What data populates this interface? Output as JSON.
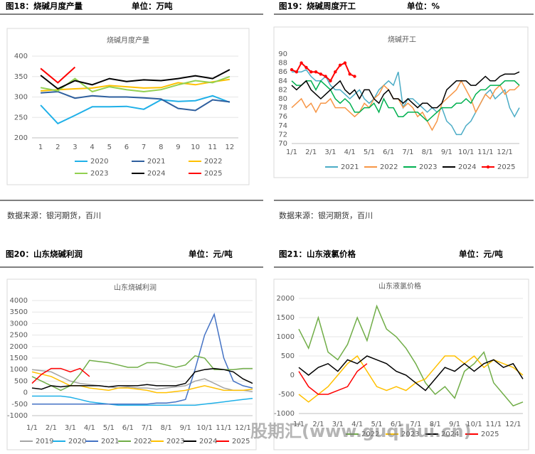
{
  "panels": [
    {
      "heading": "图18：烧碱月度产量",
      "unit": "单位：万吨",
      "source": "数据来源：银河期货，百川"
    },
    {
      "heading": "图19：烧碱周度开工",
      "unit": "单位：%",
      "source": "数据来源：银河期货，百川"
    },
    {
      "heading": "图20：山东烧碱利润",
      "unit": "单位：元/吨"
    },
    {
      "heading": "图21：山东液氯价格",
      "unit": "单位：元/吨"
    }
  ],
  "watermark": "股期汇(www.guqihui.cn)",
  "chart_data": [
    {
      "type": "line",
      "title": "烧碱月度产量",
      "categories": [
        "1",
        "2",
        "3",
        "4",
        "5",
        "6",
        "7",
        "8",
        "9",
        "10",
        "11",
        "12"
      ],
      "ylim": [
        200,
        400
      ],
      "yticks": [
        200,
        250,
        300,
        350,
        400
      ],
      "grid": true,
      "series": [
        {
          "name": "2020",
          "color": "#1fb0e8",
          "values": [
            280,
            235,
            255,
            276,
            276,
            277,
            270,
            293,
            289,
            291,
            303,
            287
          ]
        },
        {
          "name": "2021",
          "color": "#2e5f9e",
          "values": [
            310,
            313,
            297,
            303,
            300,
            300,
            298,
            295,
            272,
            267,
            293,
            288
          ]
        },
        {
          "name": "2022",
          "color": "#ffc000",
          "values": [
            315,
            318,
            320,
            322,
            328,
            325,
            322,
            323,
            335,
            330,
            337,
            343
          ]
        },
        {
          "name": "2023",
          "color": "#92d050",
          "values": [
            323,
            315,
            345,
            313,
            325,
            318,
            313,
            318,
            330,
            340,
            335,
            350
          ]
        },
        {
          "name": "2024",
          "color": "#000000",
          "values": [
            353,
            320,
            340,
            330,
            345,
            338,
            342,
            340,
            345,
            352,
            345,
            367
          ]
        },
        {
          "name": "2025",
          "color": "#ff0000",
          "values": [
            370,
            335,
            373,
            null,
            null,
            null,
            null,
            null,
            null,
            null,
            null,
            null
          ]
        }
      ]
    },
    {
      "type": "line",
      "title": "烧碱开工",
      "categories": [
        "1/1",
        null,
        null,
        null,
        "2/1",
        null,
        null,
        null,
        "3/1",
        null,
        null,
        null,
        "4/1",
        null,
        null,
        null,
        "5/1",
        null,
        null,
        null,
        "6/1",
        null,
        null,
        null,
        "7/1",
        null,
        null,
        null,
        "8/1",
        null,
        null,
        null,
        "9/1",
        null,
        null,
        null,
        "10/1",
        null,
        null,
        null,
        "11/1",
        null,
        null,
        null,
        "12/1",
        null,
        null,
        null
      ],
      "ylim": [
        70,
        90
      ],
      "yticks": [
        70,
        72,
        74,
        76,
        78,
        80,
        82,
        84,
        86,
        88,
        90
      ],
      "grid": false,
      "series": [
        {
          "name": "2021",
          "color": "#4bacc6",
          "values": [
            86,
            86,
            86,
            86.5,
            85,
            84,
            84,
            85,
            83,
            82,
            82,
            81,
            80,
            81,
            82,
            80,
            79,
            80,
            82,
            83,
            84,
            83,
            86,
            78,
            80,
            80,
            79,
            78,
            77,
            78,
            77,
            78,
            75,
            74,
            72,
            72,
            74,
            75,
            77,
            79,
            81,
            82,
            80,
            81,
            82,
            78,
            76,
            78
          ]
        },
        {
          "name": "2022",
          "color": "#f79646",
          "values": [
            78,
            79,
            80,
            78,
            79,
            77,
            79,
            79,
            80,
            78,
            78,
            78,
            77,
            76,
            77,
            79,
            78,
            80,
            81,
            83,
            82,
            80,
            80,
            78,
            79,
            78,
            76,
            77,
            75,
            73,
            75,
            79,
            80,
            81,
            82,
            84,
            82,
            80,
            77,
            79,
            81,
            80,
            82,
            83,
            81,
            82,
            82,
            83
          ]
        },
        {
          "name": "2023",
          "color": "#00b050",
          "values": [
            84,
            83,
            83,
            84,
            84,
            82,
            84,
            83,
            82,
            80,
            79,
            80,
            79,
            77,
            77,
            78,
            78,
            79,
            77,
            80,
            78,
            78,
            76,
            76,
            77,
            77,
            77,
            76,
            75,
            76,
            77,
            78,
            78,
            78,
            79,
            79,
            80,
            79,
            81,
            82,
            82,
            83,
            83,
            83,
            84,
            84,
            84,
            83
          ]
        },
        {
          "name": "2024",
          "color": "#000000",
          "values": [
            83,
            82,
            83,
            84,
            82,
            81,
            80,
            81,
            82,
            83,
            84,
            82,
            81,
            82,
            80,
            82,
            82,
            80,
            79,
            81,
            82,
            80,
            80,
            79,
            80,
            79,
            78,
            79,
            79,
            78,
            78,
            79,
            82,
            83,
            84,
            84,
            84,
            83,
            83,
            84,
            85,
            84,
            84,
            85,
            85.5,
            85.5,
            85.5,
            86
          ]
        },
        {
          "name": "2025",
          "color": "#ff0000",
          "marker": true,
          "values": [
            86.5,
            86,
            88,
            87,
            86,
            86,
            85.5,
            85,
            84,
            86,
            87.5,
            88,
            85.5,
            85,
            null,
            null,
            null,
            null,
            null,
            null,
            null,
            null,
            null,
            null,
            null,
            null,
            null,
            null,
            null,
            null,
            null,
            null,
            null,
            null,
            null,
            null,
            null,
            null,
            null,
            null,
            null,
            null,
            null,
            null,
            null,
            null,
            null,
            null
          ]
        }
      ]
    },
    {
      "type": "line",
      "title": "山东烧碱利润",
      "categories": [
        "1/1",
        null,
        "2/1",
        null,
        "3/1",
        null,
        "4/1",
        null,
        "5/1",
        null,
        "6/1",
        null,
        "7/1",
        null,
        "8/1",
        null,
        "9/1",
        null,
        "10/1",
        null,
        "11/1",
        null,
        "12/1",
        null
      ],
      "ylim": [
        -1000,
        4000
      ],
      "yticks": [
        -1000,
        -500,
        0,
        500,
        1000,
        1500,
        2000,
        2500,
        3000,
        3500,
        4000
      ],
      "grid": true,
      "series": [
        {
          "name": "2019",
          "color": "#a5a5a5",
          "values": [
            1000,
            950,
            900,
            700,
            500,
            400,
            350,
            300,
            250,
            200,
            250,
            200,
            200,
            150,
            200,
            250,
            300,
            500,
            600,
            400,
            200,
            100,
            100,
            50
          ]
        },
        {
          "name": "2020",
          "color": "#1fb0e8",
          "values": [
            -150,
            -150,
            -150,
            -150,
            -200,
            -300,
            -400,
            -450,
            -500,
            -550,
            -550,
            -550,
            -550,
            -550,
            -550,
            -550,
            -550,
            -550,
            -500,
            -450,
            -400,
            -350,
            -300,
            -250
          ]
        },
        {
          "name": "2021",
          "color": "#4472c4",
          "values": [
            -500,
            -500,
            -500,
            -500,
            -500,
            -500,
            -500,
            -500,
            -500,
            -500,
            -500,
            -500,
            -500,
            -450,
            -450,
            -400,
            -300,
            1000,
            2500,
            3400,
            1500,
            500,
            300,
            200
          ]
        },
        {
          "name": "2022",
          "color": "#70ad47",
          "values": [
            700,
            500,
            300,
            100,
            300,
            800,
            1400,
            1350,
            1300,
            1200,
            1100,
            1100,
            1300,
            1300,
            1200,
            1100,
            1200,
            1600,
            1500,
            1000,
            1000,
            1000,
            1050,
            1050
          ]
        },
        {
          "name": "2023",
          "color": "#ffc000",
          "values": [
            900,
            800,
            700,
            500,
            300,
            300,
            200,
            150,
            100,
            200,
            200,
            150,
            100,
            0,
            0,
            50,
            100,
            200,
            300,
            200,
            100,
            100,
            100,
            150
          ]
        },
        {
          "name": "2024",
          "color": "#000000",
          "values": [
            200,
            150,
            300,
            250,
            300,
            300,
            300,
            300,
            250,
            300,
            300,
            300,
            350,
            300,
            300,
            300,
            400,
            900,
            1000,
            1050,
            1000,
            900,
            600,
            400
          ]
        },
        {
          "name": "2025",
          "color": "#ff0000",
          "values": [
            400,
            800,
            1050,
            1050,
            900,
            1050,
            700,
            null,
            null,
            null,
            null,
            null,
            null,
            null,
            null,
            null,
            null,
            null,
            null,
            null,
            null,
            null,
            null,
            null
          ]
        }
      ]
    },
    {
      "type": "line",
      "title": "山东液氯价格",
      "categories": [
        "1/1",
        null,
        "2/1",
        null,
        "3/1",
        null,
        "4/1",
        null,
        "5/1",
        null,
        "6/1",
        null,
        "7/1",
        null,
        "8/1",
        null,
        "9/1",
        null,
        "10/1",
        null,
        "11/1",
        null,
        "12/1",
        null
      ],
      "ylim": [
        -1000,
        2000
      ],
      "yticks": [
        -1000,
        -500,
        0,
        500,
        1000,
        1500,
        2000
      ],
      "grid": true,
      "series": [
        {
          "name": "2022",
          "color": "#70ad47",
          "values": [
            1200,
            700,
            1500,
            600,
            400,
            800,
            1500,
            900,
            1800,
            1200,
            1000,
            700,
            300,
            -200,
            -500,
            -300,
            -600,
            100,
            300,
            600,
            -200,
            -500,
            -800,
            -700
          ]
        },
        {
          "name": "2023",
          "color": "#ffc000",
          "values": [
            -500,
            -700,
            -500,
            -300,
            0,
            300,
            500,
            100,
            -300,
            -400,
            -300,
            -400,
            -200,
            -100,
            200,
            500,
            500,
            300,
            500,
            200,
            400,
            300,
            200,
            0
          ]
        },
        {
          "name": "2024",
          "color": "#000000",
          "values": [
            200,
            0,
            200,
            300,
            100,
            400,
            300,
            500,
            400,
            300,
            100,
            0,
            -200,
            -400,
            -100,
            200,
            100,
            300,
            100,
            300,
            400,
            200,
            300,
            -100
          ]
        },
        {
          "name": "2025",
          "color": "#ff0000",
          "values": [
            100,
            -300,
            -500,
            -500,
            -400,
            -300,
            100,
            300,
            null,
            null,
            null,
            null,
            null,
            null,
            null,
            null,
            null,
            null,
            null,
            null,
            null,
            null,
            null,
            null
          ]
        }
      ]
    }
  ]
}
